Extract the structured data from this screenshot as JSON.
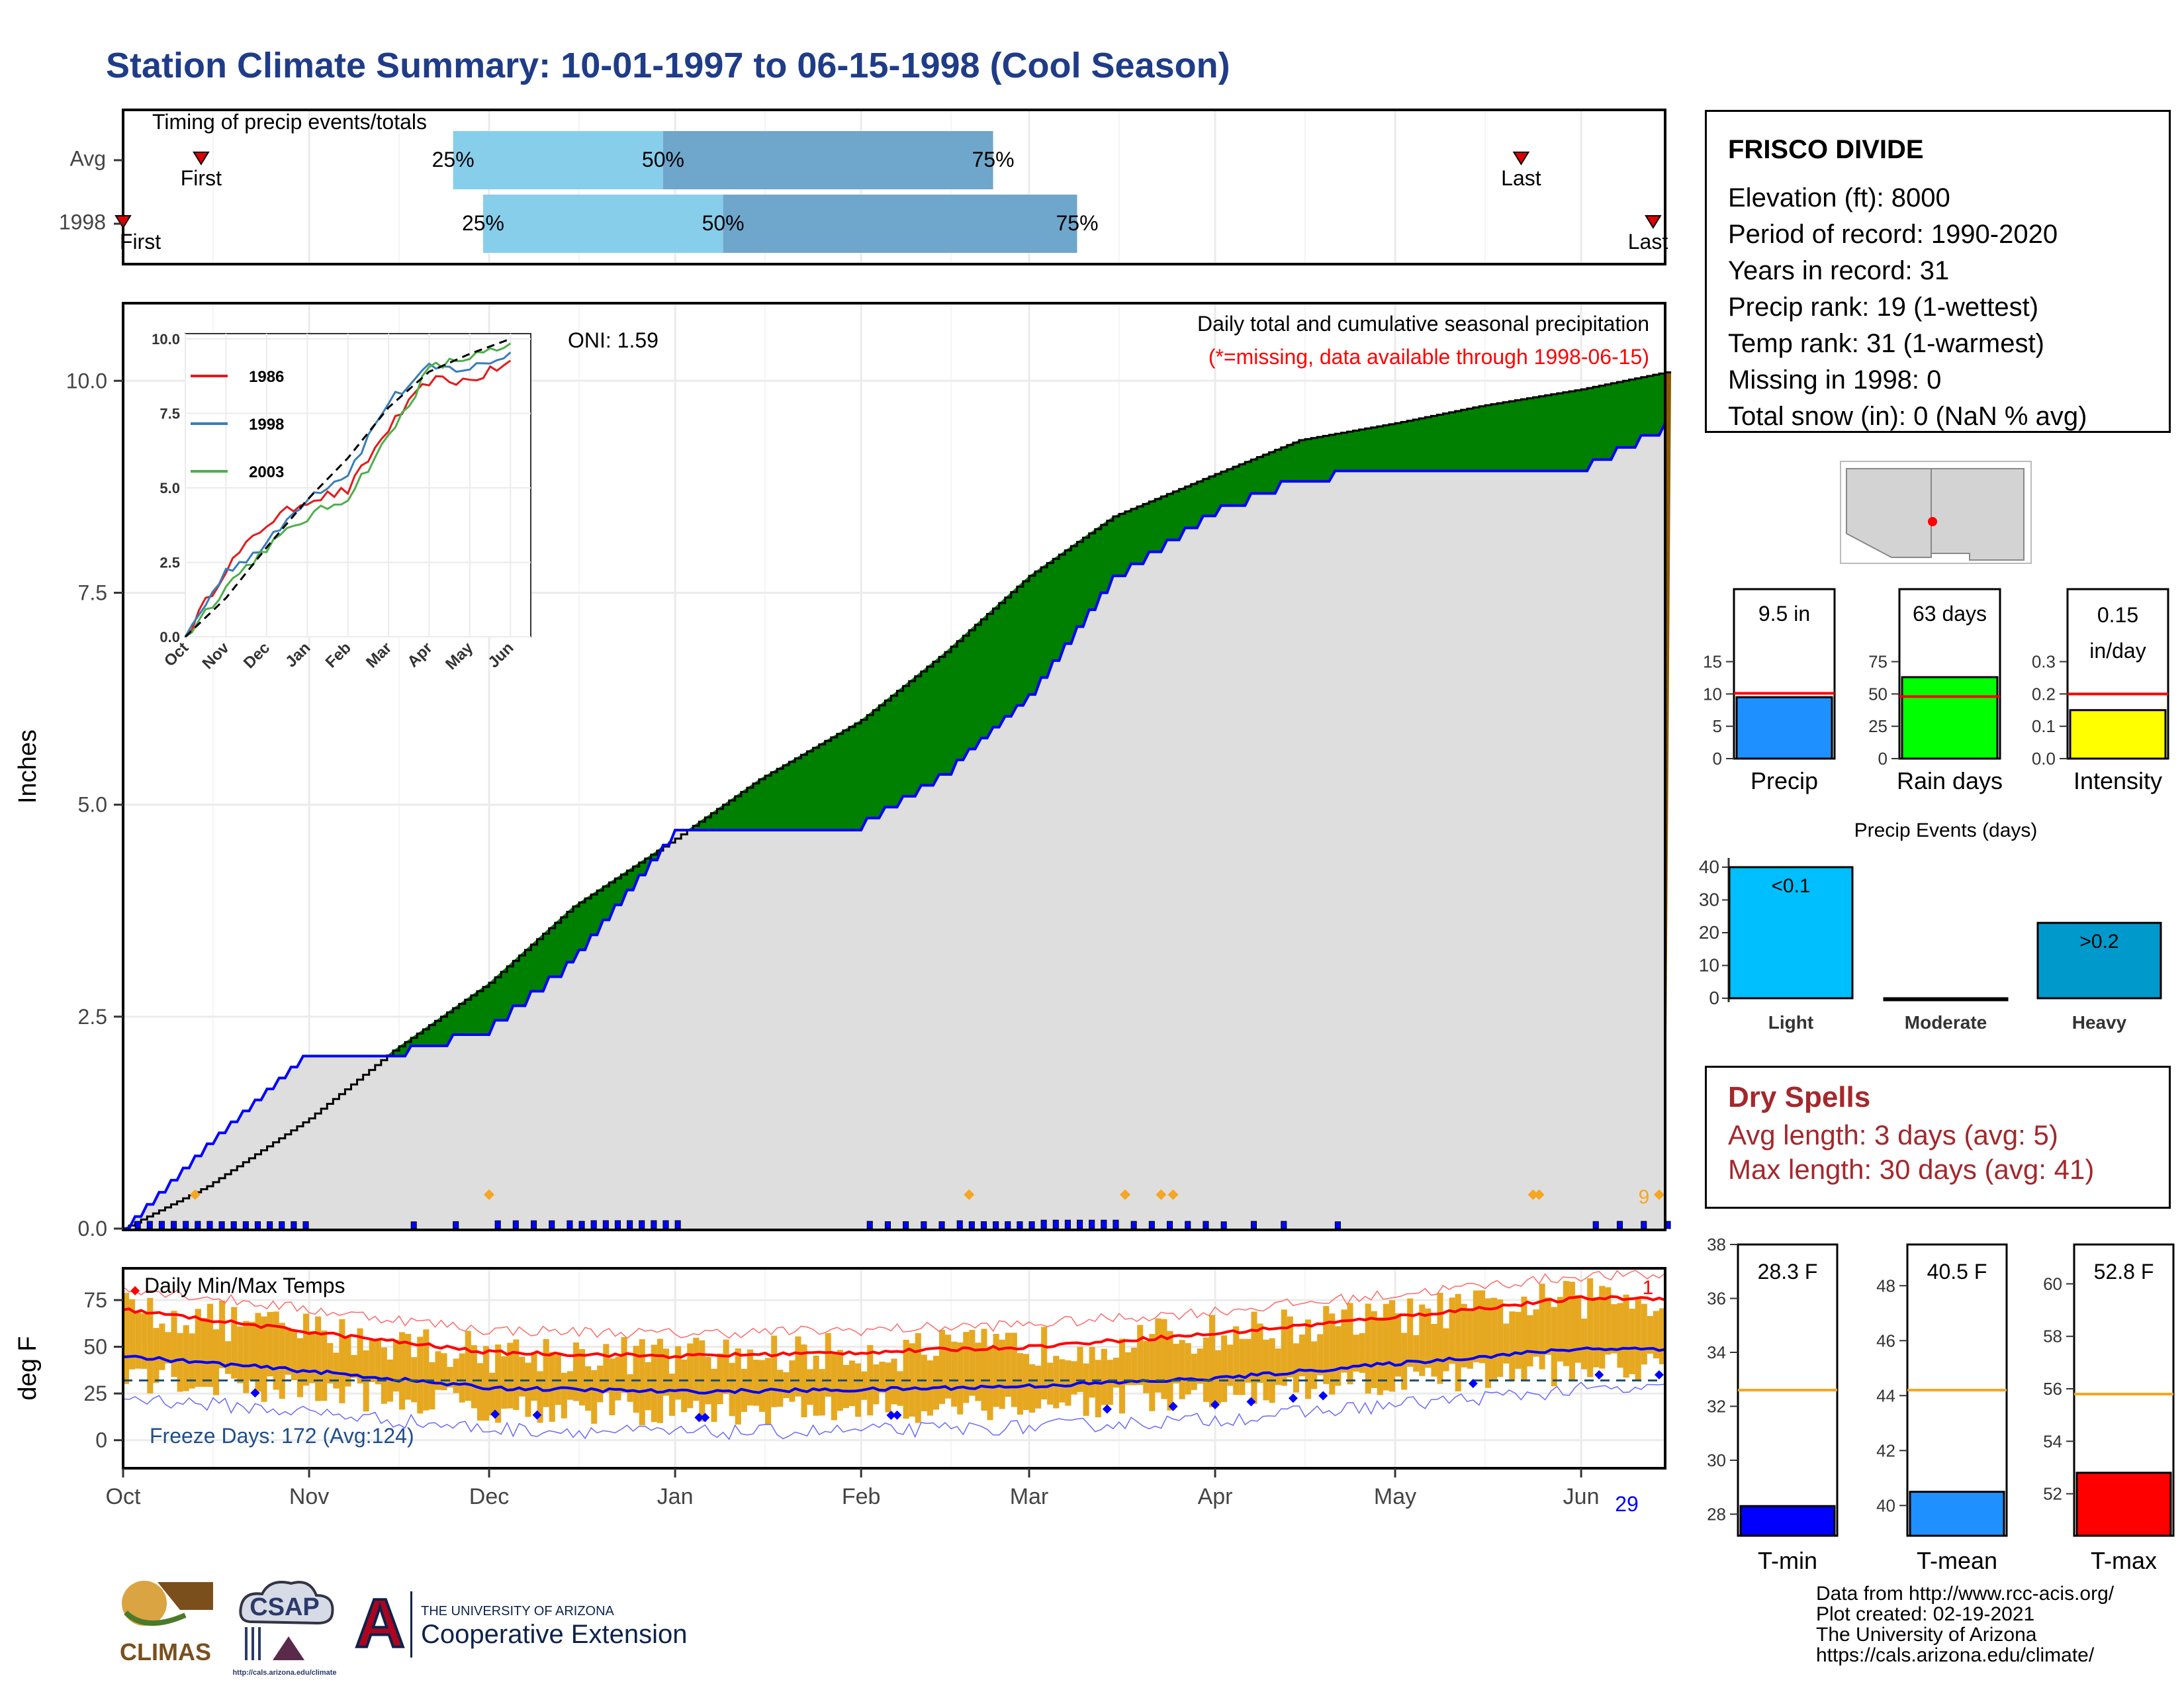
{
  "title": "Station Climate Summary: 10-01-1997 to 06-15-1998 (Cool Season)",
  "colors": {
    "title": "#1f3c88",
    "q1": "#87ceeb",
    "q2": "#6fa6cb",
    "cum_above": "#8b5a00",
    "cum_below": "#008000",
    "observed_line": "#0000ff",
    "temp_bar": "#e6a820",
    "avg_max": "#ff0000",
    "avg_min": "#0000ff",
    "dry_spells": "#a3282c"
  },
  "timing": {
    "title": "Timing of precip events/totals",
    "rows": [
      "Avg",
      "1998"
    ],
    "avg": {
      "first": "Oct 14",
      "last": "May 22",
      "q25": "Nov 25",
      "q50": "Dec 30",
      "q75": "Feb 23",
      "first_label": "First",
      "last_label": "Last",
      "l25": "25%",
      "l50": "50%",
      "l75": "75%"
    },
    "y1998": {
      "first": "Oct 1",
      "last": "Jun 13",
      "q25": "Nov 30",
      "q50": "Jan 9",
      "q75": "Mar 9",
      "first_label": "First",
      "last_label": "Last",
      "l25": "25%",
      "l50": "50%",
      "l75": "75%"
    }
  },
  "precip": {
    "ylabel": "Inches",
    "y_ticks": [
      "0.0",
      "2.5",
      "5.0",
      "7.5",
      "10.0"
    ],
    "ylim": [
      0,
      10.9
    ],
    "annotation": "Daily total and cumulative seasonal precipitation",
    "missing_note": "(*=missing, data available through 1998-06-15)",
    "oni": "ONI: 1.59",
    "missing_count": "9"
  },
  "inset": {
    "y_ticks": [
      "0.0",
      "2.5",
      "5.0",
      "7.5",
      "10.0"
    ],
    "x_ticks": [
      "Oct",
      "Nov",
      "Dec",
      "Jan",
      "Feb",
      "Mar",
      "Apr",
      "May",
      "Jun"
    ],
    "series": [
      {
        "name": "1986",
        "color": "#e31a1c"
      },
      {
        "name": "1998",
        "color": "#377eb8"
      },
      {
        "name": "2003",
        "color": "#4daf4a"
      }
    ]
  },
  "temps": {
    "title": "Daily Min/Max Temps",
    "ylabel": "deg F",
    "y_ticks": [
      "0",
      "25",
      "50",
      "75"
    ],
    "ylim": [
      -15,
      92
    ],
    "freeze_label": "Freeze Days: 172 (Avg:124)",
    "count_top": "1",
    "count_bottom": "29"
  },
  "x_ticks": [
    "Oct",
    "Nov",
    "Dec",
    "Jan",
    "Feb",
    "Mar",
    "Apr",
    "May",
    "Jun"
  ],
  "station": {
    "name": "FRISCO DIVIDE",
    "elevation": "Elevation (ft): 8000",
    "period": "Period of record: 1990-2020",
    "years": "Years in record: 31",
    "precip_rank": "Precip rank: 19 (1-wettest)",
    "temp_rank": "Temp rank: 31 (1-warmest)",
    "missing": "Missing in 1998: 0",
    "snow": "Total snow (in): 0 (NaN % avg)"
  },
  "mini_bars": [
    {
      "label": "Precip",
      "value_label": "9.5 in",
      "value": 9.5,
      "avg": 10.1,
      "ticks": [
        "0",
        "5",
        "10",
        "15"
      ],
      "max": 17,
      "color": "#1e90ff"
    },
    {
      "label": "Rain days",
      "value_label": "63 days",
      "value": 63,
      "avg": 48,
      "ticks": [
        "0",
        "25",
        "50",
        "75"
      ],
      "max": 85,
      "color": "#00ff00"
    },
    {
      "label": "Intensity",
      "value_label": "0.15 in/day",
      "value": 0.15,
      "avg": 0.2,
      "ticks": [
        "0.0",
        "0.1",
        "0.2",
        "0.3"
      ],
      "max": 0.34,
      "color": "#ffff00"
    }
  ],
  "events": {
    "title": "Precip Events (days)",
    "y_ticks": [
      "0",
      "10",
      "20",
      "30",
      "40"
    ],
    "categories": [
      "Light",
      "Moderate",
      "Heavy"
    ],
    "values": [
      40,
      0,
      23
    ],
    "bar_labels": [
      "<0.1",
      "",
      ">0.2"
    ],
    "colors": [
      "#00bfff",
      "#1e90ff",
      "#0099cc"
    ]
  },
  "dry_spells": {
    "title": "Dry Spells",
    "avg": "Avg length: 3 days (avg: 5)",
    "max": "Max length: 30 days (avg: 41)"
  },
  "temp_bars": [
    {
      "label": "T-min",
      "value_label": "28.3 F",
      "value": 28.3,
      "avg": 32.6,
      "ticks": [
        "28",
        "30",
        "32",
        "34",
        "36",
        "38"
      ],
      "min": 27.2,
      "max": 38,
      "color": "#0000ff"
    },
    {
      "label": "T-mean",
      "value_label": "40.5 F",
      "value": 40.5,
      "avg": 44.2,
      "ticks": [
        "40",
        "42",
        "44",
        "46",
        "48"
      ],
      "min": 38.9,
      "max": 49.5,
      "color": "#1e90ff"
    },
    {
      "label": "T-max",
      "value_label": "52.8 F",
      "value": 52.8,
      "avg": 55.8,
      "ticks": [
        "52",
        "54",
        "56",
        "58",
        "60"
      ],
      "min": 50.4,
      "max": 61.5,
      "color": "#ff0000"
    }
  ],
  "footer": {
    "line1": "Data from http://www.rcc-acis.org/",
    "line2": "Plot created: 02-19-2021",
    "line3": "The University of Arizona",
    "line4": "https://cals.arizona.edu/climate/"
  },
  "logos": {
    "climas": "CLIMAS",
    "csap": "CSAP",
    "csap_url": "http://cals.arizona.edu/climate",
    "ua_small": "THE UNIVERSITY OF ARIZONA",
    "ua_big": "Cooperative Extension",
    "ua_letter": "A"
  },
  "chart_data": [
    {
      "type": "bar",
      "title": "Timing of precip events/totals",
      "categories": [
        "Avg",
        "1998"
      ],
      "series": [
        {
          "name": "25%",
          "values": [
            "Nov 25",
            "Nov 30"
          ]
        },
        {
          "name": "50%",
          "values": [
            "Dec 30",
            "Jan 9"
          ]
        },
        {
          "name": "75%",
          "values": [
            "Feb 23",
            "Mar 9"
          ]
        },
        {
          "name": "First",
          "values": [
            "Oct 14",
            "Oct 1"
          ]
        },
        {
          "name": "Last",
          "values": [
            "May 22",
            "Jun 13"
          ]
        }
      ]
    },
    {
      "type": "area",
      "title": "Daily total and cumulative seasonal precipitation",
      "ylabel": "Inches",
      "ylim": [
        0,
        10.9
      ],
      "x": [
        "Oct 1",
        "Oct 15",
        "Nov 1",
        "Nov 15",
        "Dec 1",
        "Dec 15",
        "Jan 1",
        "Jan 15",
        "Feb 1",
        "Feb 15",
        "Mar 1",
        "Mar 15",
        "Apr 1",
        "Apr 15",
        "May 1",
        "May 15",
        "Jun 1",
        "Jun 15"
      ],
      "series": [
        {
          "name": "Average cumulative",
          "values": [
            0.0,
            0.5,
            1.3,
            2.1,
            2.9,
            3.8,
            4.6,
            5.3,
            6.0,
            6.8,
            7.7,
            8.4,
            8.9,
            9.3,
            9.5,
            9.7,
            9.9,
            10.1
          ]
        },
        {
          "name": "1998 cumulative",
          "values": [
            0.0,
            1.0,
            2.1,
            2.1,
            2.4,
            3.2,
            4.7,
            4.7,
            4.8,
            5.4,
            6.3,
            7.7,
            8.5,
            8.9,
            9.0,
            9.0,
            9.0,
            9.5
          ]
        }
      ]
    },
    {
      "type": "line",
      "title": "",
      "x": [
        "Oct",
        "Nov",
        "Dec",
        "Jan",
        "Feb",
        "Mar",
        "Apr",
        "May",
        "Jun"
      ],
      "ylim": [
        0,
        10
      ],
      "series": [
        {
          "name": "1986",
          "values": [
            0.0,
            2.3,
            3.8,
            4.6,
            4.9,
            7.0,
            8.6,
            8.6,
            9.2
          ]
        },
        {
          "name": "1998",
          "values": [
            0.0,
            2.2,
            3.1,
            4.7,
            5.5,
            7.9,
            9.0,
            9.0,
            9.5
          ]
        },
        {
          "name": "2003",
          "values": [
            0.0,
            1.7,
            3.0,
            4.0,
            4.7,
            6.7,
            9.0,
            9.4,
            9.7
          ]
        },
        {
          "name": "Average",
          "values": [
            0.0,
            1.3,
            3.0,
            4.6,
            6.0,
            7.7,
            8.9,
            9.5,
            10.0
          ]
        }
      ]
    },
    {
      "type": "line",
      "title": "Daily Min/Max Temps",
      "ylabel": "deg F",
      "ylim": [
        -15,
        92
      ],
      "x": [
        "Oct",
        "Nov",
        "Dec",
        "Jan",
        "Feb",
        "Mar",
        "Apr",
        "May",
        "Jun"
      ],
      "series": [
        {
          "name": "Average max",
          "values": [
            70,
            58,
            47,
            45,
            47,
            50,
            57,
            66,
            76
          ]
        },
        {
          "name": "Average min",
          "values": [
            45,
            37,
            28,
            26,
            27,
            29,
            33,
            41,
            49
          ]
        }
      ]
    },
    {
      "type": "bar",
      "categories": [
        "Precip",
        "Rain days",
        "Intensity"
      ],
      "values": [
        9.5,
        63,
        0.15
      ]
    },
    {
      "type": "bar",
      "title": "Precip Events (days)",
      "categories": [
        "Light",
        "Moderate",
        "Heavy"
      ],
      "values": [
        40,
        0,
        23
      ]
    },
    {
      "type": "bar",
      "categories": [
        "T-min",
        "T-mean",
        "T-max"
      ],
      "values": [
        28.3,
        40.5,
        52.8
      ]
    }
  ]
}
